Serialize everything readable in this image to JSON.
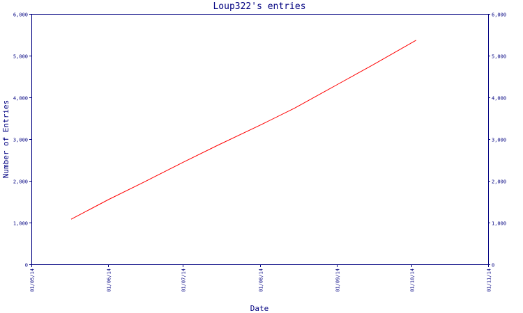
{
  "chart_data": {
    "type": "line",
    "title": "Loup322's entries",
    "xlabel": "Date",
    "ylabel": "Number of Entries",
    "x_ticks": [
      "01/05/14",
      "01/06/14",
      "01/07/14",
      "01/08/14",
      "01/09/14",
      "01/10/14",
      "01/11/14"
    ],
    "y_ticks": [
      "0",
      "1,000",
      "2,000",
      "3,000",
      "4,000",
      "5,000",
      "6,000"
    ],
    "ylim": [
      0,
      6000
    ],
    "xlim": [
      "2014-05-01",
      "2014-11-01"
    ],
    "grid": false,
    "right_axis_labels": true,
    "series": [
      {
        "color": "#ff0000",
        "points": [
          {
            "date": "2014-05-17",
            "value": 1080
          },
          {
            "date": "2014-06-01",
            "value": 1550
          },
          {
            "date": "2014-06-15",
            "value": 1960
          },
          {
            "date": "2014-07-01",
            "value": 2440
          },
          {
            "date": "2014-07-15",
            "value": 2850
          },
          {
            "date": "2014-08-01",
            "value": 3330
          },
          {
            "date": "2014-08-15",
            "value": 3740
          },
          {
            "date": "2014-09-01",
            "value": 4300
          },
          {
            "date": "2014-09-15",
            "value": 4760
          },
          {
            "date": "2014-10-03",
            "value": 5370
          }
        ]
      }
    ]
  }
}
